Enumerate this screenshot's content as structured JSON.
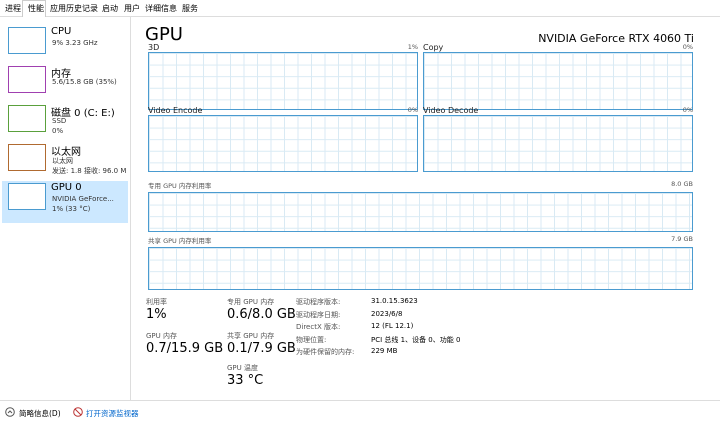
{
  "tabs": [
    "进程",
    "性能",
    "应用历史记录",
    "启动",
    "用户",
    "详细信息",
    "服务"
  ],
  "sidebar": [
    {
      "name": "CPU",
      "lines": [
        "9% 3.23 GHz"
      ]
    },
    {
      "name": "内存",
      "lines": [
        "5.6/15.8 GB (35%)"
      ]
    },
    {
      "name": "磁盘 0 (C: E:)",
      "lines": [
        "SSD",
        "0%"
      ]
    },
    {
      "name": "以太网",
      "lines": [
        "以太网",
        "发送: 1.8 接收: 96.0 M"
      ]
    },
    {
      "name": "GPU 0",
      "lines": [
        "NVIDIA GeForce...",
        "1% (33 °C)"
      ]
    }
  ],
  "header": {
    "title": "GPU",
    "device": "NVIDIA GeForce RTX 4060 Ti"
  },
  "graphs": [
    {
      "label": "3D",
      "value": "1%"
    },
    {
      "label": "Copy",
      "value": "0%"
    },
    {
      "label": "Video Encode",
      "value": "0%"
    },
    {
      "label": "Video Decode",
      "value": "0%"
    },
    {
      "label": "专用 GPU 内存利用率",
      "value": "8.0 GB"
    },
    {
      "label": "共享 GPU 内存利用率",
      "value": "7.9 GB"
    }
  ],
  "stats": [
    {
      "label": "利用率",
      "value": "1%"
    },
    {
      "label": "专用 GPU 内存",
      "value": "0.6/8.0 GB"
    },
    {
      "label": "GPU 内存",
      "value": "0.7/15.9 GB"
    },
    {
      "label": "共享 GPU 内存",
      "value": "0.1/7.9 GB"
    },
    {
      "label": "GPU 温度",
      "value": "33 °C"
    }
  ],
  "info": [
    {
      "label": "驱动程序版本:",
      "value": "31.0.15.3623"
    },
    {
      "label": "驱动程序日期:",
      "value": "2023/6/8"
    },
    {
      "label": "DirectX 版本:",
      "value": "12 (FL 12.1)"
    },
    {
      "label": "物理位置:",
      "value": "PCI 总线 1、设备 0、功能 0"
    },
    {
      "label": "为硬件保留的内存:",
      "value": "229 MB"
    }
  ],
  "footer": {
    "summary": "简略信息(D)",
    "monitor": "打开资源监视器"
  }
}
